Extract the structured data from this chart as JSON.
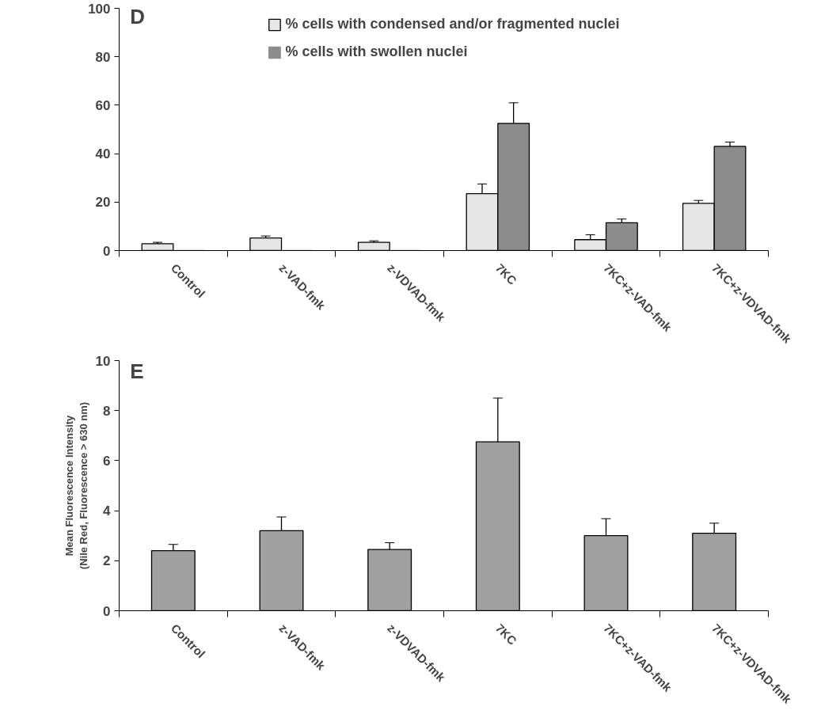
{
  "chart_data": [
    {
      "type": "bar",
      "categories": [
        "Control",
        "z-VAD-fmk",
        "z-VDVAD-fmk",
        "7KC",
        "7KC+z-VAD-fmk",
        "7KC+z-VDVAD-fmk"
      ],
      "annotations": [
        "D"
      ],
      "ylim": [
        0,
        100
      ],
      "yticks": [
        0,
        20,
        40,
        60,
        80,
        100
      ],
      "legend": "top",
      "series": [
        {
          "name": "% cells with condensed and/or fragmented nuclei",
          "color": "#e6e6e6",
          "values": [
            2.8,
            5.2,
            3.4,
            23.5,
            4.5,
            19.5
          ],
          "errors": [
            0.6,
            0.8,
            0.6,
            4,
            2,
            1.2
          ]
        },
        {
          "name": "% cells with swollen nuclei",
          "color": "#8c8c8c",
          "values": [
            0,
            0,
            0,
            52.5,
            11.5,
            43
          ],
          "errors": [
            null,
            null,
            null,
            8.5,
            1.5,
            1.8
          ]
        }
      ]
    },
    {
      "type": "bar",
      "categories": [
        "Control",
        "z-VAD-fmk",
        "z-VDVAD-fmk",
        "7KC",
        "7KC+z-VAD-fmk",
        "7KC+z-VDVAD-fmk"
      ],
      "annotations": [
        "E"
      ],
      "ylabel": "Mean Fluorescence Intensity\n(Nile Red, Fluorescence > 630 nm)",
      "ylim": [
        0,
        10
      ],
      "yticks": [
        0,
        2,
        4,
        6,
        8,
        10
      ],
      "series": [
        {
          "color": "#a0a0a0",
          "values": [
            2.4,
            3.2,
            2.45,
            6.75,
            3.0,
            3.1
          ],
          "errors": [
            0.25,
            0.55,
            0.27,
            1.75,
            0.68,
            0.4
          ]
        }
      ]
    }
  ]
}
